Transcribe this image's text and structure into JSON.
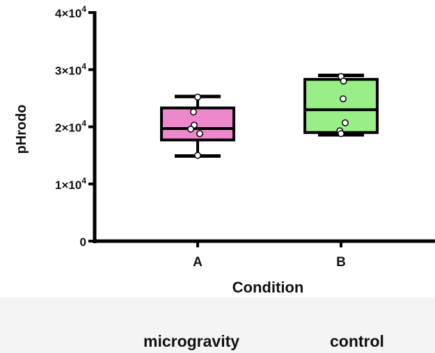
{
  "chart_data": {
    "type": "box",
    "xlabel": "Condition",
    "ylabel": "pHrodo",
    "categories": [
      "A",
      "B"
    ],
    "ylim": [
      0,
      40000
    ],
    "yticks": [
      {
        "value": 0,
        "base": "0",
        "exp": ""
      },
      {
        "value": 10000,
        "base": "1×10",
        "exp": "4"
      },
      {
        "value": 20000,
        "base": "2×10",
        "exp": "4"
      },
      {
        "value": 30000,
        "base": "3×10",
        "exp": "4"
      },
      {
        "value": 40000,
        "base": "4×10",
        "exp": "4"
      }
    ],
    "boxes": [
      {
        "category": "A",
        "min": 14900,
        "q1": 17700,
        "median": 19700,
        "q3": 23300,
        "max": 25300,
        "color": "#ee88cc",
        "points": [
          25200,
          22600,
          20300,
          19600,
          18800,
          15000
        ]
      },
      {
        "category": "B",
        "min": 18600,
        "q1": 19000,
        "median": 23000,
        "q3": 28300,
        "max": 29000,
        "color": "#99ee88",
        "points": [
          28800,
          28000,
          24900,
          20700,
          19300,
          18800
        ]
      }
    ],
    "grid": false,
    "legend": "none"
  },
  "condition_labels": {
    "a": "microgravity",
    "b": "control"
  }
}
